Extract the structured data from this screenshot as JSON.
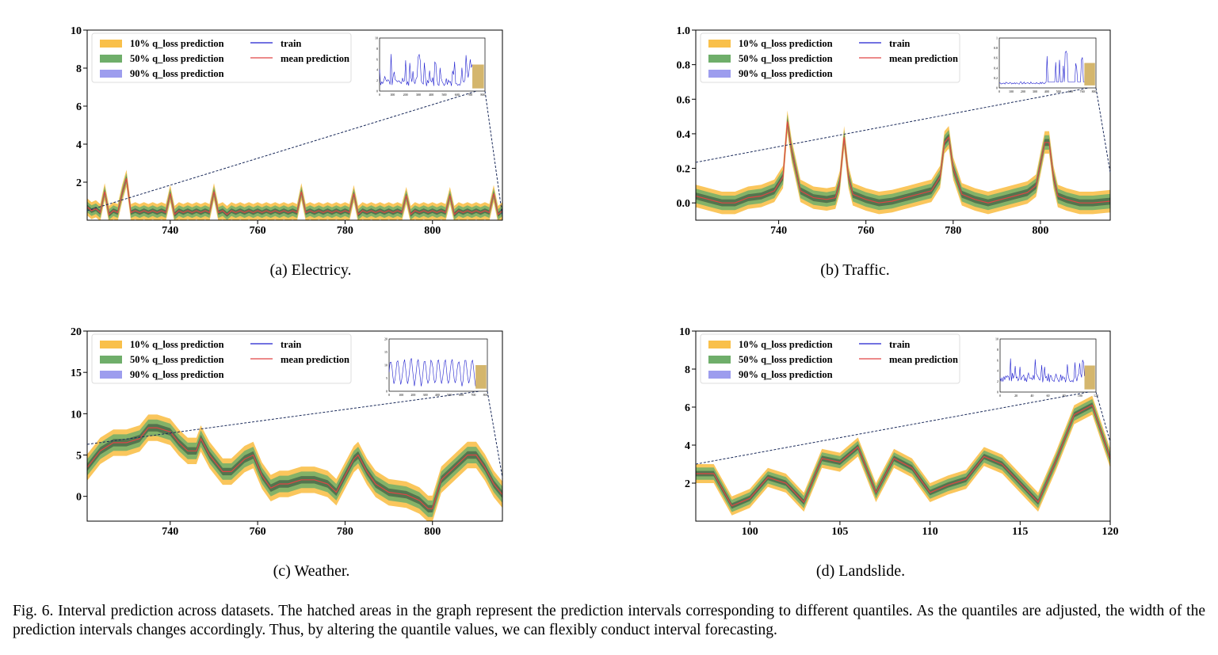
{
  "figure_caption": "Fig. 6.  Interval prediction across datasets. The hatched areas in the graph represent the prediction intervals corresponding to different quantiles. As the quantiles are adjusted, the width of the prediction intervals changes accordingly. Thus, by altering the quantile values, we can flexibly conduct interval forecasting.",
  "colors": {
    "q10": "#f9c04a",
    "q50": "#6fae6a",
    "q90": "#9d9dee",
    "train": "#1f1fcf",
    "mean": "#e04545",
    "dash": "#1a2a5a"
  },
  "chart_data": [
    {
      "type": "area",
      "caption": "(a)  Electricy.",
      "legend": [
        "10% q_loss prediction",
        "50% q_loss prediction",
        "90% q_loss prediction",
        "train",
        "mean prediction"
      ],
      "xlim": [
        721,
        816
      ],
      "ylim": [
        0,
        10
      ],
      "xticks": [
        740,
        760,
        780,
        800
      ],
      "yticks": [
        2,
        4,
        6,
        8,
        10
      ],
      "legend_position": "top-left",
      "x": [
        721,
        722,
        723,
        724,
        725,
        726,
        727,
        728,
        729,
        730,
        731,
        732,
        733,
        734,
        735,
        736,
        737,
        738,
        739,
        740,
        741,
        742,
        743,
        744,
        745,
        746,
        747,
        748,
        749,
        750,
        751,
        752,
        753,
        754,
        755,
        756,
        757,
        758,
        759,
        760,
        761,
        762,
        763,
        764,
        765,
        766,
        767,
        768,
        769,
        770,
        771,
        772,
        773,
        774,
        775,
        776,
        777,
        778,
        779,
        780,
        781,
        782,
        783,
        784,
        785,
        786,
        787,
        788,
        789,
        790,
        791,
        792,
        793,
        794,
        795,
        796,
        797,
        798,
        799,
        800,
        801,
        802,
        803,
        804,
        805,
        806,
        807,
        808,
        809,
        810,
        811,
        812,
        813,
        814,
        815,
        816
      ],
      "mean": [
        0.7,
        0.5,
        0.6,
        0.4,
        1.5,
        0.3,
        0.5,
        0.4,
        1.4,
        2.2,
        0.4,
        0.5,
        0.4,
        0.5,
        0.4,
        0.5,
        0.4,
        0.5,
        0.4,
        1.4,
        0.3,
        0.5,
        0.4,
        0.5,
        0.4,
        0.5,
        0.4,
        0.5,
        0.4,
        1.5,
        0.4,
        0.5,
        0.3,
        0.5,
        0.4,
        0.5,
        0.4,
        0.5,
        0.4,
        0.5,
        0.4,
        0.5,
        0.4,
        0.5,
        0.4,
        0.5,
        0.4,
        0.5,
        0.4,
        1.5,
        0.4,
        0.5,
        0.4,
        0.5,
        0.4,
        0.5,
        0.4,
        0.5,
        0.4,
        0.5,
        0.4,
        1.4,
        0.3,
        0.5,
        0.4,
        0.5,
        0.4,
        0.5,
        0.4,
        0.5,
        0.4,
        0.5,
        0.4,
        1.3,
        0.3,
        0.5,
        0.4,
        0.5,
        0.4,
        0.5,
        0.4,
        0.5,
        0.4,
        1.3,
        0.3,
        0.5,
        0.4,
        0.5,
        0.4,
        0.5,
        0.4,
        0.5,
        0.4,
        1.4,
        0.3,
        0.5
      ],
      "band_widths": [
        0.45,
        0.28,
        0.12
      ],
      "train_end": 721,
      "inset": {
        "xlim": [
          0,
          816
        ],
        "ylim": [
          0,
          10
        ],
        "xticks": [
          0,
          100,
          200,
          300,
          400,
          500,
          600,
          700,
          800
        ],
        "yticks": [
          0,
          2,
          4,
          6,
          8,
          10
        ]
      }
    },
    {
      "type": "area",
      "caption": "(b)  Traffic.",
      "legend": [
        "10% q_loss prediction",
        "50% q_loss prediction",
        "90% q_loss prediction",
        "train",
        "mean prediction"
      ],
      "xlim": [
        721,
        816
      ],
      "ylim": [
        -0.1,
        1.0
      ],
      "xticks": [
        740,
        760,
        780,
        800
      ],
      "yticks": [
        0.0,
        0.2,
        0.4,
        0.6,
        0.8,
        1.0
      ],
      "legend_position": "top-left",
      "x": [
        721,
        724,
        727,
        730,
        733,
        736,
        739,
        741,
        742,
        743,
        745,
        748,
        751,
        753,
        754,
        755,
        756,
        757,
        760,
        763,
        766,
        769,
        772,
        775,
        777,
        778,
        779,
        780,
        782,
        785,
        788,
        791,
        794,
        797,
        799,
        801,
        802,
        803,
        804,
        806,
        809,
        812,
        816
      ],
      "mean": [
        0.04,
        0.02,
        0.0,
        0.0,
        0.03,
        0.04,
        0.07,
        0.15,
        0.47,
        0.3,
        0.07,
        0.03,
        0.02,
        0.03,
        0.12,
        0.38,
        0.15,
        0.05,
        0.02,
        0.0,
        0.01,
        0.03,
        0.05,
        0.07,
        0.15,
        0.35,
        0.38,
        0.2,
        0.05,
        0.02,
        0.0,
        0.02,
        0.04,
        0.06,
        0.1,
        0.35,
        0.35,
        0.15,
        0.04,
        0.02,
        0.0,
        0.0,
        0.01
      ],
      "band_widths": [
        0.065,
        0.042,
        0.02
      ],
      "inset": {
        "xlim": [
          0,
          816
        ],
        "ylim": [
          0,
          1.0
        ],
        "xticks": [
          0,
          100,
          200,
          300,
          400,
          500,
          600,
          700,
          800
        ],
        "yticks": [
          0,
          0.2,
          0.4,
          0.6,
          0.8,
          1.0
        ]
      }
    },
    {
      "type": "area",
      "caption": "(c)  Weather.",
      "legend": [
        "10% q_loss prediction",
        "50% q_loss prediction",
        "90% q_loss prediction",
        "train",
        "mean prediction"
      ],
      "xlim": [
        721,
        816
      ],
      "ylim": [
        -3,
        20
      ],
      "xticks": [
        740,
        760,
        780,
        800
      ],
      "yticks": [
        0,
        5,
        10,
        15,
        20
      ],
      "legend_position": "top-left",
      "x": [
        721,
        724,
        727,
        730,
        733,
        735,
        737,
        740,
        742,
        744,
        746,
        747,
        749,
        752,
        754,
        757,
        759,
        761,
        763,
        765,
        767,
        770,
        773,
        776,
        778,
        780,
        782,
        783,
        785,
        787,
        790,
        794,
        797,
        799,
        800,
        802,
        805,
        808,
        810,
        812,
        814,
        816
      ],
      "mean": [
        3.5,
        5.5,
        6.5,
        6.5,
        7.0,
        8.3,
        8.3,
        7.8,
        6.5,
        5.5,
        5.5,
        7.0,
        5.0,
        3.0,
        3.0,
        4.5,
        5.0,
        2.5,
        1.0,
        1.5,
        1.5,
        2.0,
        2.0,
        1.5,
        0.5,
        2.5,
        4.5,
        5.0,
        3.0,
        1.5,
        0.5,
        0.2,
        -0.5,
        -1.5,
        -1.5,
        2.0,
        3.5,
        5.0,
        5.0,
        3.5,
        1.5,
        0.2
      ],
      "band_widths": [
        1.6,
        1.0,
        0.45
      ],
      "inset": {
        "xlim": [
          0,
          816
        ],
        "ylim": [
          0,
          20
        ],
        "xticks": [
          0,
          100,
          200,
          300,
          400,
          500,
          600,
          700,
          800
        ],
        "yticks": [
          0,
          5,
          10,
          15,
          20
        ]
      }
    },
    {
      "type": "area",
      "caption": "(d)  Landslide.",
      "legend": [
        "10% q_loss prediction",
        "50% q_loss prediction",
        "90% q_loss prediction",
        "train",
        "mean prediction"
      ],
      "xlim": [
        97,
        120
      ],
      "ylim": [
        0,
        10
      ],
      "xticks": [
        100,
        105,
        110,
        115,
        120
      ],
      "yticks": [
        2,
        4,
        6,
        8,
        10
      ],
      "legend_position": "top-left",
      "x": [
        97,
        98,
        99,
        100,
        101,
        102,
        103,
        104,
        105,
        106,
        107,
        108,
        109,
        110,
        111,
        112,
        113,
        114,
        115,
        116,
        117,
        118,
        119,
        120
      ],
      "mean": [
        2.5,
        2.5,
        0.8,
        1.2,
        2.3,
        2.0,
        1.0,
        3.3,
        3.1,
        3.9,
        1.5,
        3.3,
        2.8,
        1.5,
        1.9,
        2.2,
        3.4,
        3.0,
        2.0,
        1.0,
        3.2,
        5.6,
        6.1,
        3.3
      ],
      "band_widths": [
        0.5,
        0.32,
        0.14
      ],
      "inset": {
        "xlim": [
          0,
          120
        ],
        "ylim": [
          0,
          10
        ],
        "xticks": [
          0,
          20,
          40,
          60,
          80,
          100,
          120
        ],
        "yticks": [
          0,
          2,
          4,
          6,
          8,
          10
        ]
      }
    }
  ]
}
